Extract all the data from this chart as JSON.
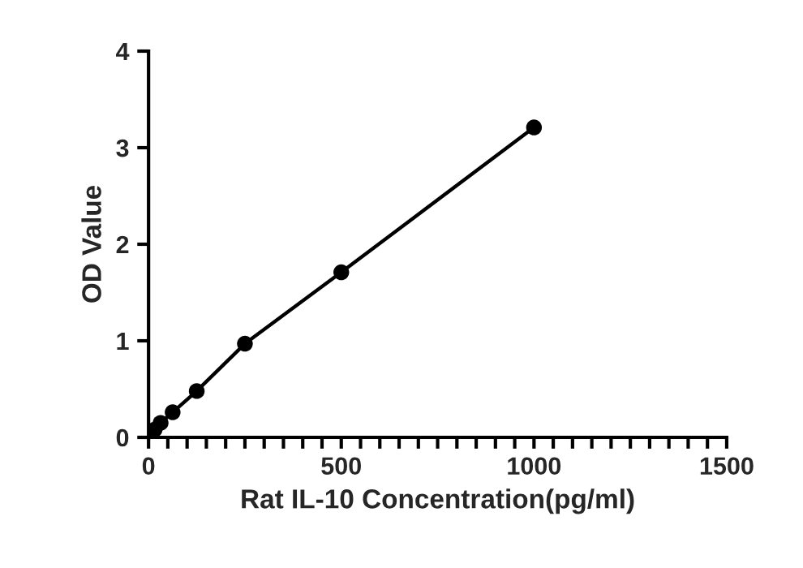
{
  "chart_data": {
    "type": "line",
    "xlabel": "Rat IL-10 Concentration(pg/ml)",
    "ylabel": "OD Value",
    "x": [
      0,
      15.6,
      31.25,
      62.5,
      125,
      250,
      500,
      1000
    ],
    "series": [
      {
        "color": "#000000",
        "values": [
          0.02,
          0.08,
          0.15,
          0.26,
          0.48,
          0.97,
          1.71,
          3.21
        ]
      }
    ],
    "marker": "circle",
    "line_style": "solid",
    "grid": false,
    "legend": false,
    "xlim": [
      0,
      1500
    ],
    "ylim": [
      0,
      4
    ],
    "xticks": [
      0,
      {
        "value": 50,
        "label": null
      },
      {
        "value": 100,
        "label": null
      },
      {
        "value": 150,
        "label": null
      },
      {
        "value": 200,
        "label": null
      },
      {
        "value": 250,
        "label": null
      },
      {
        "value": 300,
        "label": null
      },
      {
        "value": 350,
        "label": null
      },
      {
        "value": 400,
        "label": null
      },
      {
        "value": 450,
        "label": null
      },
      500,
      {
        "value": 550,
        "label": null
      },
      {
        "value": 600,
        "label": null
      },
      {
        "value": 650,
        "label": null
      },
      {
        "value": 700,
        "label": null
      },
      {
        "value": 750,
        "label": null
      },
      {
        "value": 800,
        "label": null
      },
      {
        "value": 850,
        "label": null
      },
      {
        "value": 900,
        "label": null
      },
      {
        "value": 950,
        "label": null
      },
      1000,
      {
        "value": 1050,
        "label": null
      },
      {
        "value": 1100,
        "label": null
      },
      {
        "value": 1150,
        "label": null
      },
      {
        "value": 1200,
        "label": null
      },
      {
        "value": 1250,
        "label": null
      },
      {
        "value": 1300,
        "label": null
      },
      {
        "value": 1350,
        "label": null
      },
      {
        "value": 1400,
        "label": null
      },
      {
        "value": 1450,
        "label": null
      },
      1500
    ],
    "yticks": [
      0,
      1,
      2,
      3,
      4
    ]
  }
}
